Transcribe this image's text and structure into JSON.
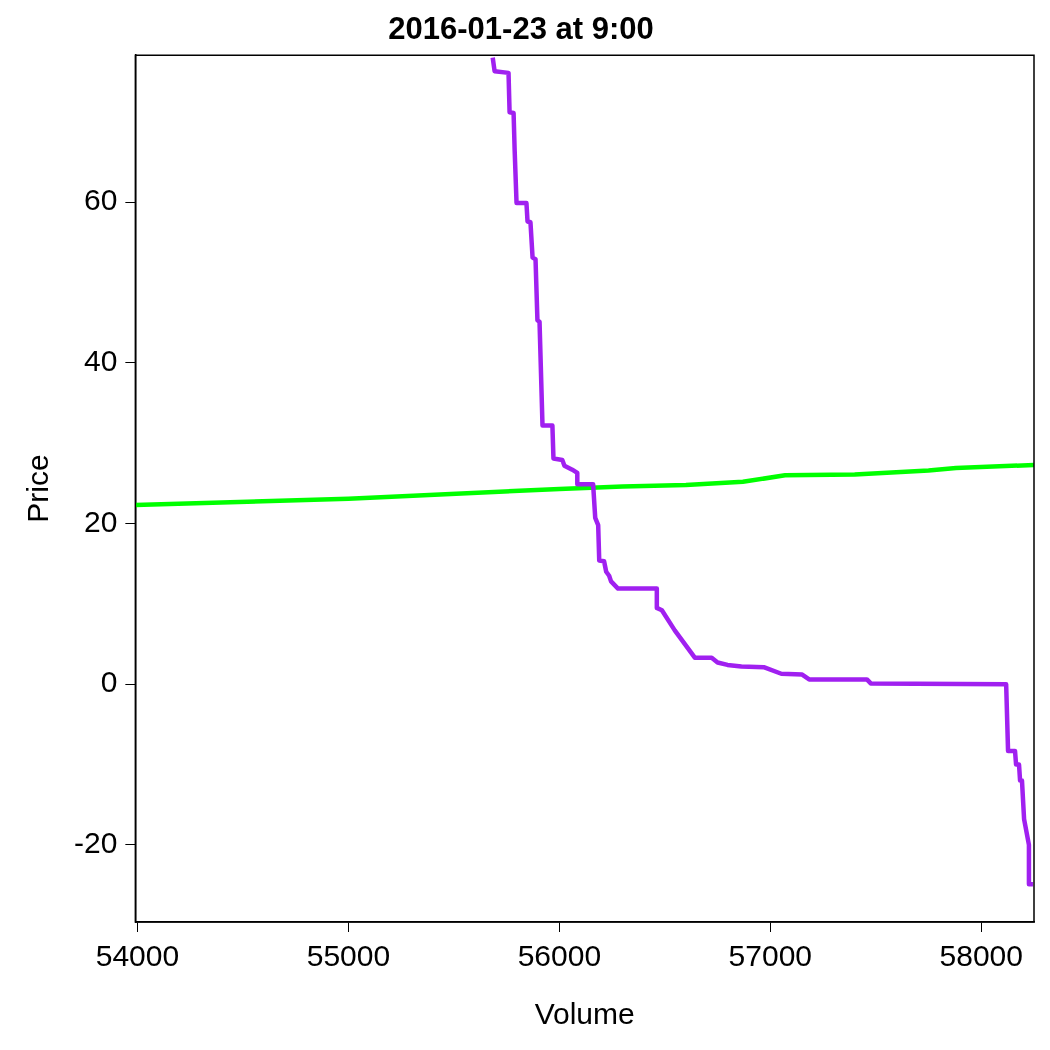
{
  "chart_data": {
    "type": "line",
    "title": "2016-01-23 at 9:00",
    "xlabel": "Volume",
    "ylabel": "Price",
    "xlim": [
      53990,
      58250
    ],
    "ylim": [
      -29.6,
      78.3
    ],
    "xticks": [
      54000,
      55000,
      56000,
      57000,
      58000
    ],
    "yticks": [
      -20,
      0,
      20,
      40,
      60
    ],
    "grid": false,
    "legend": false,
    "marker": "none",
    "line_style": "solid",
    "series": [
      {
        "color": "#a020f0",
        "x": [
          55684,
          55693,
          55759,
          55764,
          55783,
          55788,
          55797,
          55844,
          55849,
          55863,
          55873,
          55887,
          55896,
          55906,
          55920,
          55967,
          55972,
          56014,
          56024,
          56061,
          56085,
          56085,
          56160,
          56170,
          56184,
          56189,
          56212,
          56222,
          56236,
          56245,
          56278,
          56462,
          56462,
          56486,
          56547,
          56642,
          56722,
          56750,
          56797,
          56863,
          56972,
          57052,
          57151,
          57184,
          57458,
          57476,
          58118,
          58127,
          58160,
          58165,
          58179,
          58184,
          58193,
          58203,
          58226,
          58226,
          58245
        ],
        "values": [
          78,
          76.3,
          76.1,
          71.2,
          71.1,
          66.5,
          59.9,
          59.9,
          57.6,
          57.5,
          53.1,
          52.9,
          45.3,
          45.1,
          32.2,
          32.2,
          28.1,
          27.9,
          27.2,
          26.7,
          26.3,
          24.9,
          24.9,
          20.7,
          19.8,
          15.4,
          15.3,
          14,
          13.5,
          12.8,
          11.9,
          11.9,
          9.5,
          9.2,
          6.7,
          3.3,
          3.3,
          2.7,
          2.4,
          2.2,
          2.1,
          1.3,
          1.2,
          0.6,
          0.6,
          0.1,
          0,
          -8.3,
          -8.3,
          -10,
          -10,
          -12,
          -12,
          -16.8,
          -20,
          -24.9,
          -24.9
        ]
      },
      {
        "color": "#00ff00",
        "x": [
          53990,
          55000,
          56000,
          56300,
          56600,
          56870,
          57070,
          57400,
          57750,
          57880,
          58250
        ],
        "values": [
          22.3,
          23.1,
          24.3,
          24.6,
          24.8,
          25.2,
          26,
          26.1,
          26.6,
          26.9,
          27.3
        ]
      }
    ]
  }
}
